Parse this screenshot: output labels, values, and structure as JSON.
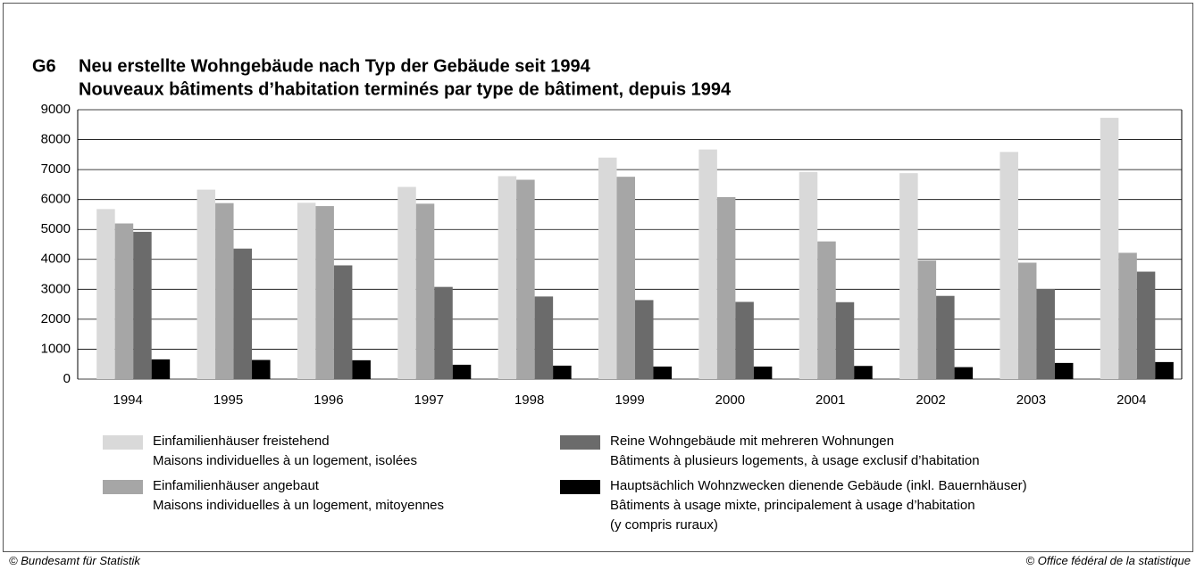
{
  "chart_data": {
    "type": "bar",
    "chart_id": "G6",
    "title": "Neu erstellte Wohngebäude nach Typ der Gebäude seit 1994",
    "subtitle": "Nouveaux bâtiments d’habitation terminés par type de bâtiment, depuis 1994",
    "categories": [
      "1994",
      "1995",
      "1996",
      "1997",
      "1998",
      "1999",
      "2000",
      "2001",
      "2002",
      "2003",
      "2004"
    ],
    "series": [
      {
        "name": "Einfamilienhäuser freistehend\nMaisons individuelles à un logement, isolées",
        "color": "#d9d9d9",
        "values": [
          5680,
          6330,
          5890,
          6420,
          6780,
          7400,
          7670,
          6920,
          6880,
          7590,
          8730
        ]
      },
      {
        "name": "Einfamilienhäuser angebaut\nMaisons individuelles à un logement, mitoyennes",
        "color": "#a6a6a6",
        "values": [
          5200,
          5880,
          5780,
          5860,
          6660,
          6760,
          6080,
          4600,
          3960,
          3890,
          4220
        ]
      },
      {
        "name": "Reine Wohngebäude mit mehreren Wohnungen\nBâtiments à plusieurs logements, à usage exclusif d’habitation",
        "color": "#6b6b6b",
        "values": [
          4920,
          4360,
          3800,
          3080,
          2760,
          2640,
          2580,
          2570,
          2780,
          3010,
          3590
        ]
      },
      {
        "name": "Hauptsächlich Wohnzwecken dienende Gebäude (inkl. Bauernhäuser)\nBâtiments à usage mixte, principalement à usage d’habitation\n(y compris ruraux)",
        "color": "#000000",
        "values": [
          660,
          640,
          630,
          480,
          450,
          420,
          420,
          440,
          400,
          540,
          570
        ]
      }
    ],
    "ylim": [
      0,
      9000
    ],
    "yticks": [
      0,
      1000,
      2000,
      3000,
      4000,
      5000,
      6000,
      7000,
      8000,
      9000
    ],
    "grid": true,
    "footer_left": "© Bundesamt für Statistik",
    "footer_right": "© Office fédéral de la statistique"
  }
}
